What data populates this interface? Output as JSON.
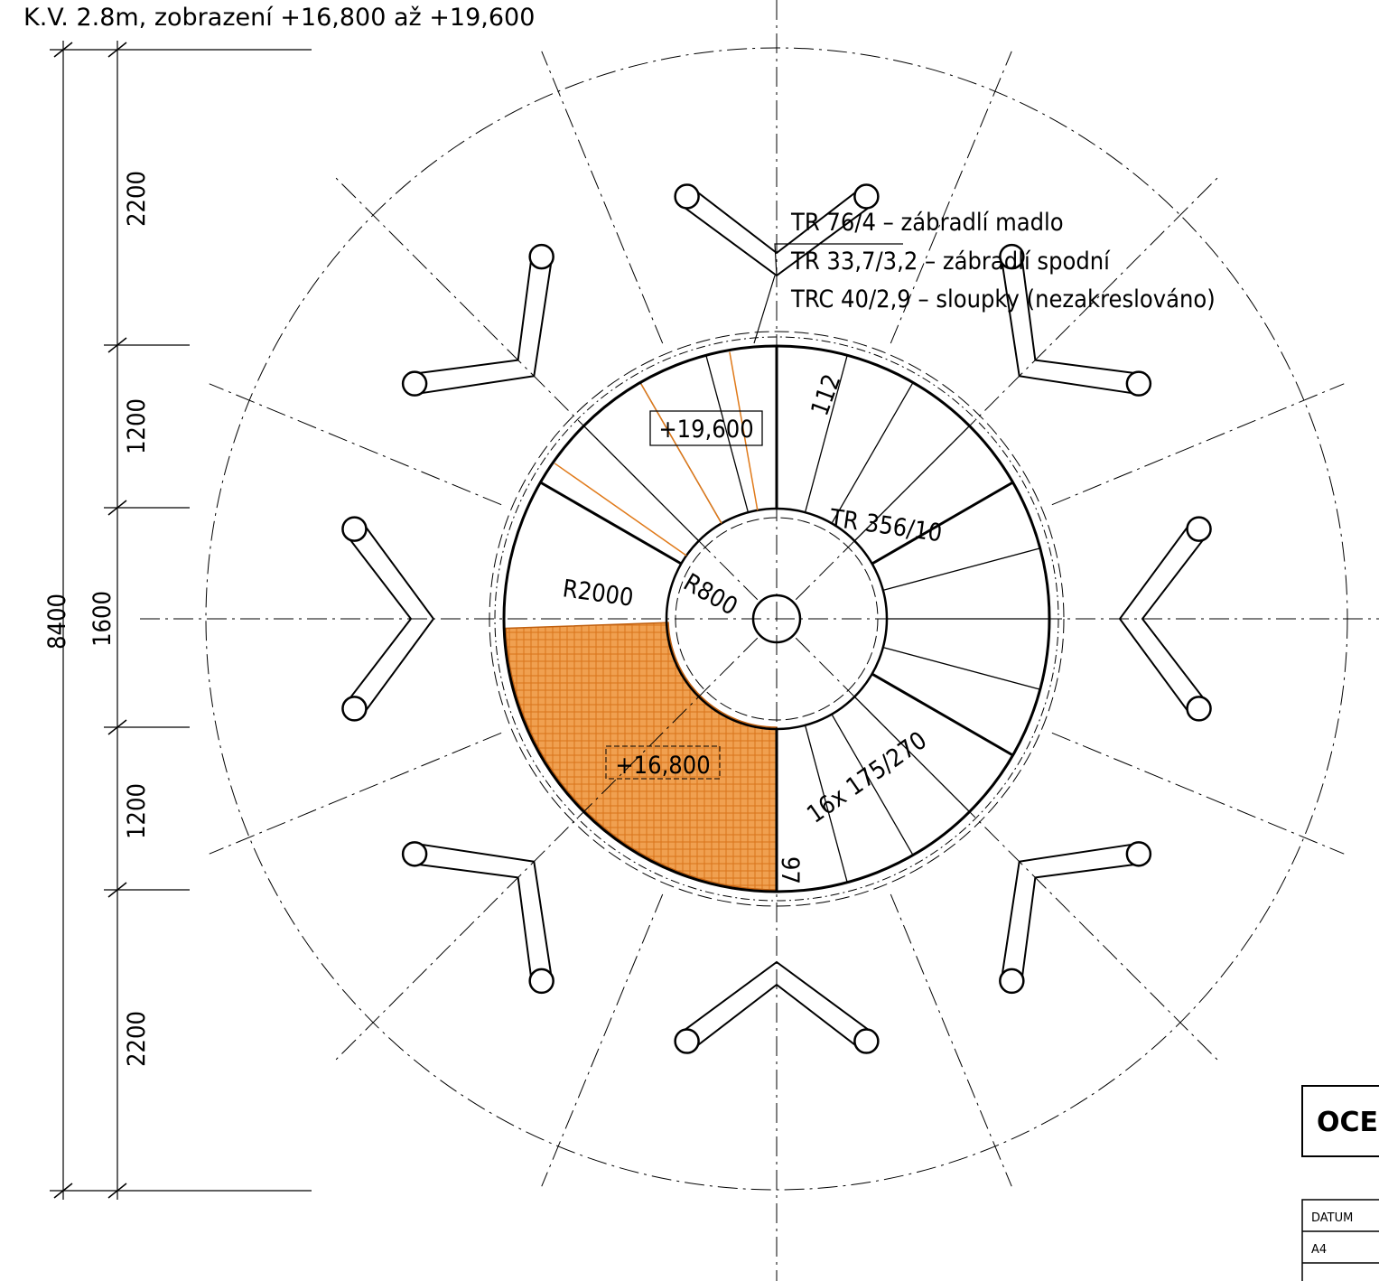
{
  "title": "K.V. 2.8m, zobrazení +16,800 až +19,600",
  "dimensions": {
    "total": "8400",
    "segments": [
      "2200",
      "1200",
      "1600",
      "1200",
      "2200"
    ]
  },
  "callouts": [
    "TR 76/4 – zábradlí madlo",
    "TR 33,7/3,2 – zábradlí spodní",
    "TRC 40/2,9 – sloupky (nezakreslováno)"
  ],
  "levels": {
    "upper": "+19,600",
    "lower": "+16,800"
  },
  "annotations": {
    "width": "112",
    "column": "TR 356/10",
    "outer_radius": "R2000",
    "inner_radius": "R800",
    "steps": "16x 175/270",
    "angle": "97"
  },
  "title_block": {
    "heading": "OCE",
    "rows": [
      "DATUM",
      "A4"
    ]
  }
}
